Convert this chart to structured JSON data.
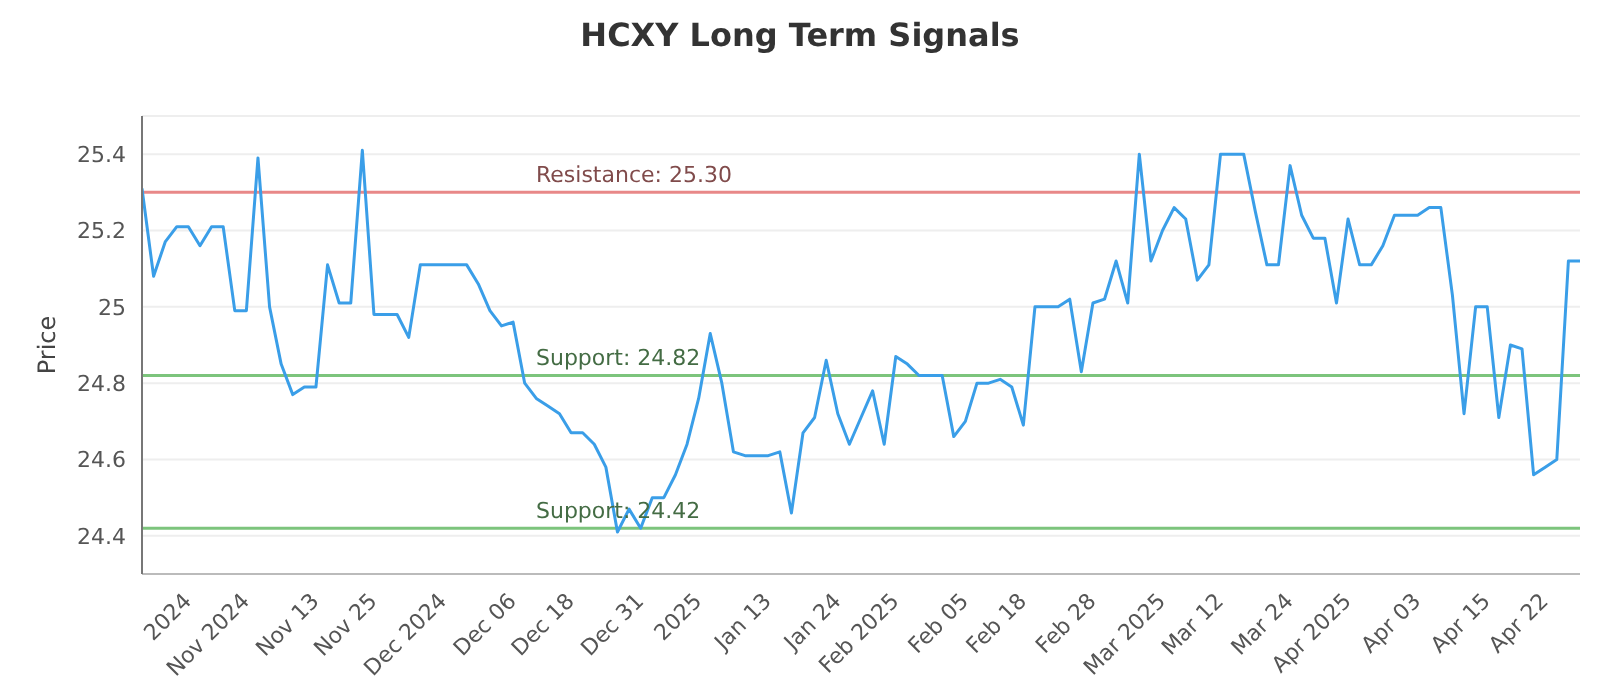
{
  "chart_data": {
    "type": "line",
    "title": "HCXY Long Term Signals",
    "ylabel": "Price",
    "categories": [
      null,
      null,
      null,
      null,
      "2024",
      null,
      null,
      null,
      null,
      "Nov 2024",
      null,
      null,
      null,
      null,
      null,
      "Nov 13",
      null,
      null,
      null,
      null,
      "Nov 25",
      null,
      null,
      null,
      null,
      null,
      "Dec 2024",
      null,
      null,
      null,
      null,
      null,
      "Dec 06",
      null,
      null,
      null,
      null,
      "Dec 18",
      null,
      null,
      null,
      null,
      null,
      "Dec 31",
      null,
      null,
      null,
      null,
      "2025",
      null,
      null,
      null,
      null,
      null,
      "Jan 13",
      null,
      null,
      null,
      null,
      null,
      "Jan 24",
      null,
      null,
      null,
      null,
      "Feb 2025",
      null,
      null,
      null,
      null,
      null,
      "Feb 05",
      null,
      null,
      null,
      null,
      "Feb 18",
      null,
      null,
      null,
      null,
      null,
      "Feb 28",
      null,
      null,
      null,
      null,
      null,
      "Mar 2025",
      null,
      null,
      null,
      null,
      "Mar 12",
      null,
      null,
      null,
      null,
      null,
      "Mar 24",
      null,
      null,
      null,
      null,
      "Apr 2025",
      null,
      null,
      null,
      null,
      null,
      "Apr 03",
      null,
      null,
      null,
      null,
      null,
      "Apr 15",
      null,
      null,
      null,
      null,
      "Apr 22",
      null,
      null,
      null
    ],
    "series": [
      {
        "color": "#3a9ee8",
        "values": [
          25.31,
          25.08,
          25.17,
          25.21,
          25.21,
          25.16,
          25.21,
          25.21,
          24.99,
          24.99,
          25.39,
          25.0,
          24.85,
          24.77,
          24.79,
          24.79,
          25.11,
          25.01,
          25.01,
          25.41,
          24.98,
          24.98,
          24.98,
          24.92,
          25.11,
          25.11,
          25.11,
          25.11,
          25.11,
          25.06,
          24.99,
          24.95,
          24.96,
          24.8,
          24.76,
          24.74,
          24.72,
          24.67,
          24.67,
          24.64,
          24.58,
          24.41,
          24.47,
          24.42,
          24.5,
          24.5,
          24.56,
          24.64,
          24.76,
          24.93,
          24.8,
          24.62,
          24.61,
          24.61,
          24.61,
          24.62,
          24.46,
          24.67,
          24.71,
          24.86,
          24.72,
          24.64,
          24.71,
          24.78,
          24.64,
          24.87,
          24.85,
          24.82,
          24.82,
          24.82,
          24.66,
          24.7,
          24.8,
          24.8,
          24.81,
          24.79,
          24.69,
          25.0,
          25.0,
          25.0,
          25.02,
          24.83,
          25.01,
          25.02,
          25.12,
          25.01,
          25.4,
          25.12,
          25.2,
          25.26,
          25.23,
          25.07,
          25.11,
          25.4,
          25.4,
          25.4,
          25.25,
          25.11,
          25.11,
          25.37,
          25.24,
          25.18,
          25.18,
          25.01,
          25.23,
          25.11,
          25.11,
          25.16,
          25.24,
          25.24,
          25.24,
          25.26,
          25.26,
          25.03,
          24.72,
          25.0,
          25.0,
          24.71,
          24.9,
          24.89,
          24.56,
          24.58,
          24.6,
          25.12,
          25.12
        ]
      }
    ],
    "ylim": [
      24.3,
      25.5
    ],
    "yticks": [
      24.4,
      24.6,
      24.8,
      25.0,
      25.2,
      25.4
    ],
    "grid": "y",
    "marker": "none",
    "line_style": "solid",
    "ref_lines": [
      {
        "axis": "y",
        "value": 25.3,
        "label": "Resistance: 25.30",
        "color": "#e88888"
      },
      {
        "axis": "y",
        "value": 24.82,
        "label": "Support: 24.82",
        "color": "#7cc47c"
      },
      {
        "axis": "y",
        "value": 24.42,
        "label": "Support: 24.42",
        "color": "#7cc47c"
      }
    ]
  }
}
